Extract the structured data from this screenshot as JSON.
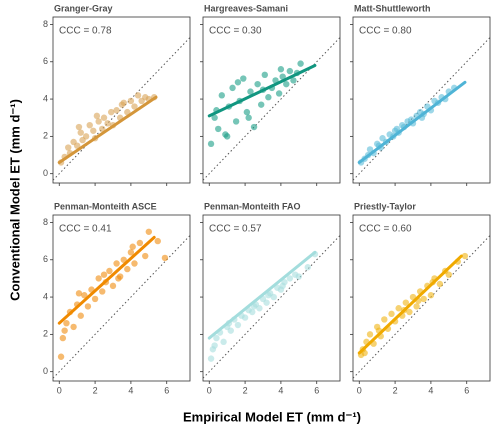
{
  "xlabel": "Empirical Model ET (mm d⁻¹)",
  "ylabel": "Conventional Model ET (mm d⁻¹)",
  "chart_data": [
    {
      "type": "scatter",
      "title": "Granger-Gray",
      "annotation": "CCC = 0.78",
      "color": "#d9a356",
      "line_color": "#d4963a",
      "x": [
        0.1,
        0.3,
        0.5,
        0.6,
        0.8,
        1.0,
        1.2,
        1.3,
        1.5,
        1.7,
        1.9,
        2.0,
        2.2,
        2.4,
        2.5,
        2.7,
        2.9,
        3.0,
        3.2,
        3.4,
        3.6,
        3.8,
        4.0,
        4.2,
        4.4,
        4.6,
        4.8,
        5.0,
        5.3,
        2.1,
        1.1,
        3.5
      ],
      "values": [
        0.6,
        0.9,
        1.4,
        1.1,
        1.7,
        1.5,
        2.2,
        1.8,
        2.0,
        2.6,
        2.3,
        1.9,
        2.8,
        2.4,
        3.0,
        2.7,
        3.3,
        2.6,
        3.4,
        3.0,
        3.8,
        3.3,
        3.9,
        3.6,
        4.2,
        3.9,
        4.1,
        4.0,
        4.1,
        3.1,
        2.5,
        3.7
      ],
      "fit": {
        "x": [
          0,
          5.4
        ],
        "y": [
          0.6,
          4.1
        ]
      },
      "xlim": [
        -0.35,
        7.3
      ],
      "ylim": [
        -0.5,
        8.4
      ],
      "xticks": [
        0,
        2,
        4,
        6
      ],
      "yticks": [
        0,
        2,
        4,
        6,
        8
      ]
    },
    {
      "type": "scatter",
      "title": "Hargreaves-Samani",
      "annotation": "CCC = 0.30",
      "color": "#1a9e87",
      "line_color": "#119680",
      "x": [
        0.1,
        0.3,
        0.5,
        0.7,
        0.9,
        1.1,
        1.3,
        1.5,
        1.7,
        1.9,
        2.1,
        2.3,
        2.5,
        2.7,
        2.9,
        3.1,
        3.3,
        3.5,
        3.7,
        3.9,
        4.1,
        4.3,
        4.5,
        4.7,
        4.9,
        5.1,
        0.4,
        1.0,
        1.6,
        2.2,
        3.0,
        4.0
      ],
      "values": [
        1.6,
        3.0,
        2.4,
        4.2,
        2.1,
        3.6,
        4.6,
        2.8,
        3.9,
        5.1,
        3.3,
        4.4,
        2.5,
        4.8,
        3.7,
        5.3,
        4.1,
        4.6,
        5.0,
        4.3,
        5.2,
        4.8,
        5.5,
        5.0,
        5.4,
        5.9,
        3.4,
        2.0,
        4.9,
        3.0,
        4.5,
        5.6
      ],
      "fit": {
        "x": [
          0,
          5.9
        ],
        "y": [
          3.1,
          5.8
        ]
      },
      "xlim": [
        -0.35,
        7.3
      ],
      "ylim": [
        -0.5,
        8.4
      ],
      "xticks": [
        0,
        2,
        4,
        6
      ],
      "yticks": [
        0,
        2,
        4,
        6,
        8
      ]
    },
    {
      "type": "scatter",
      "title": "Matt-Shuttleworth",
      "annotation": "CCC = 0.80",
      "color": "#5bbcd9",
      "line_color": "#4fb4d6",
      "x": [
        0.1,
        0.3,
        0.5,
        0.6,
        0.8,
        1.0,
        1.2,
        1.3,
        1.5,
        1.7,
        1.9,
        2.0,
        2.2,
        2.4,
        2.5,
        2.7,
        2.9,
        3.0,
        3.2,
        3.4,
        3.6,
        3.8,
        4.0,
        4.2,
        4.4,
        4.6,
        4.8,
        5.0,
        5.3,
        2.1,
        1.1,
        3.5
      ],
      "values": [
        0.6,
        0.8,
        1.0,
        1.3,
        1.1,
        1.6,
        1.4,
        1.9,
        1.7,
        2.1,
        2.0,
        2.3,
        2.2,
        2.6,
        2.5,
        2.8,
        2.9,
        2.7,
        3.1,
        3.3,
        3.2,
        3.6,
        3.4,
        3.9,
        3.8,
        4.1,
        4.0,
        4.4,
        4.6,
        2.4,
        1.5,
        3.0
      ],
      "fit": {
        "x": [
          0,
          5.9
        ],
        "y": [
          0.6,
          4.9
        ]
      },
      "xlim": [
        -0.35,
        7.3
      ],
      "ylim": [
        -0.5,
        8.4
      ],
      "xticks": [
        0,
        2,
        4,
        6
      ],
      "yticks": [
        0,
        2,
        4,
        6,
        8
      ]
    },
    {
      "type": "scatter",
      "title": "Penman-Monteith ASCE",
      "annotation": "CCC = 0.41",
      "color": "#f08c0f",
      "line_color": "#f08a00",
      "x": [
        0.1,
        0.2,
        0.4,
        0.6,
        0.8,
        1.0,
        1.2,
        1.4,
        1.6,
        1.8,
        2.0,
        2.2,
        2.4,
        2.6,
        2.8,
        3.0,
        3.2,
        3.4,
        3.6,
        3.8,
        4.0,
        4.2,
        4.5,
        4.8,
        5.0,
        5.5,
        5.9,
        0.3,
        1.1,
        2.5,
        3.3,
        4.1
      ],
      "values": [
        0.8,
        1.8,
        2.6,
        3.2,
        2.4,
        3.6,
        3.0,
        4.1,
        3.5,
        4.4,
        3.9,
        5.0,
        4.3,
        4.8,
        5.4,
        4.6,
        5.8,
        5.1,
        6.0,
        5.5,
        6.4,
        5.8,
        6.9,
        6.2,
        7.5,
        7.0,
        6.1,
        2.2,
        4.2,
        5.2,
        5.0,
        6.7
      ],
      "fit": {
        "x": [
          0,
          5.3
        ],
        "y": [
          2.6,
          7.2
        ]
      },
      "xlim": [
        -0.35,
        7.3
      ],
      "ylim": [
        -0.5,
        8.4
      ],
      "xticks": [
        0,
        2,
        4,
        6
      ],
      "yticks": [
        0,
        2,
        4,
        6,
        8
      ]
    },
    {
      "type": "scatter",
      "title": "Penman-Monteith FAO",
      "annotation": "CCC = 0.57",
      "color": "#a6dede",
      "line_color": "#a3dddd",
      "x": [
        0.1,
        0.2,
        0.4,
        0.6,
        0.8,
        1.0,
        1.2,
        1.4,
        1.6,
        1.8,
        2.0,
        2.2,
        2.4,
        2.6,
        2.8,
        3.0,
        3.2,
        3.4,
        3.6,
        3.8,
        4.0,
        4.2,
        4.5,
        4.8,
        5.0,
        5.5,
        5.9,
        0.3,
        1.1,
        2.5,
        3.3,
        4.1
      ],
      "values": [
        0.7,
        1.2,
        1.8,
        2.1,
        1.6,
        2.4,
        2.2,
        2.8,
        2.5,
        3.0,
        2.9,
        3.3,
        3.2,
        3.6,
        3.4,
        3.9,
        3.7,
        4.2,
        4.0,
        4.5,
        4.4,
        4.8,
        5.0,
        5.2,
        5.1,
        5.6,
        6.3,
        1.4,
        2.6,
        3.5,
        4.1,
        4.6
      ],
      "fit": {
        "x": [
          0,
          5.9
        ],
        "y": [
          1.8,
          6.4
        ]
      },
      "xlim": [
        -0.35,
        7.3
      ],
      "ylim": [
        -0.5,
        8.4
      ],
      "xticks": [
        0,
        2,
        4,
        6
      ],
      "yticks": [
        0,
        2,
        4,
        6,
        8
      ]
    },
    {
      "type": "scatter",
      "title": "Priestly-Taylor",
      "annotation": "CCC = 0.60",
      "color": "#f0b414",
      "line_color": "#f0aa00",
      "x": [
        0.1,
        0.2,
        0.4,
        0.6,
        0.8,
        1.0,
        1.2,
        1.4,
        1.6,
        1.8,
        2.0,
        2.2,
        2.4,
        2.6,
        2.8,
        3.0,
        3.2,
        3.4,
        3.6,
        3.8,
        4.0,
        4.2,
        4.5,
        4.8,
        5.0,
        5.5,
        5.9,
        0.3,
        1.1,
        2.5,
        3.3,
        4.1
      ],
      "values": [
        0.9,
        1.2,
        1.6,
        2.0,
        1.5,
        2.4,
        1.9,
        2.8,
        2.3,
        3.1,
        2.7,
        3.4,
        3.0,
        3.7,
        3.2,
        4.0,
        3.5,
        4.3,
        3.9,
        4.6,
        4.1,
        5.0,
        4.7,
        5.4,
        5.2,
        5.9,
        6.2,
        1.0,
        2.2,
        3.3,
        3.8,
        4.8
      ],
      "fit": {
        "x": [
          0,
          5.7
        ],
        "y": [
          1.0,
          6.2
        ]
      },
      "xlim": [
        -0.35,
        7.3
      ],
      "ylim": [
        -0.5,
        8.4
      ],
      "xticks": [
        0,
        2,
        4,
        6
      ],
      "yticks": [
        0,
        2,
        4,
        6,
        8
      ]
    }
  ]
}
